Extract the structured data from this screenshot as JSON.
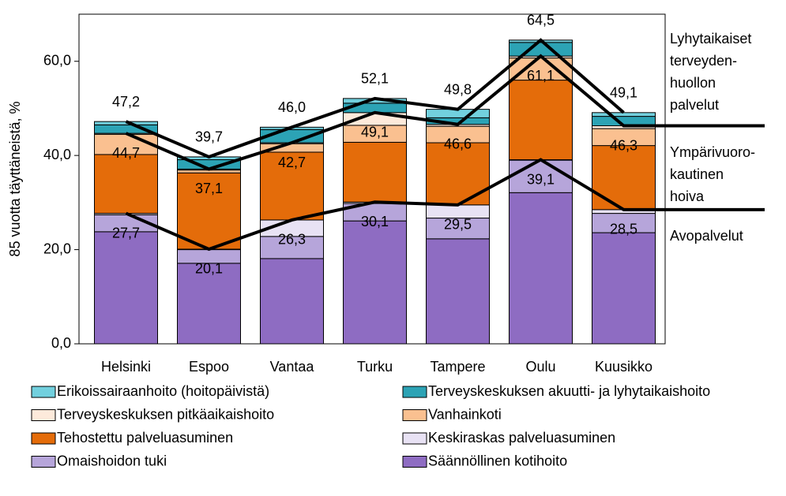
{
  "chart_data": {
    "type": "bar",
    "stacked": true,
    "y_label": "85 vuotta täyttäneistä, %",
    "categories": [
      "Helsinki",
      "Espoo",
      "Vantaa",
      "Turku",
      "Tampere",
      "Oulu",
      "Kuusikko"
    ],
    "ylim": [
      0,
      70
    ],
    "yticks": [
      {
        "value": 0,
        "label": "0,0"
      },
      {
        "value": 20,
        "label": "20,0"
      },
      {
        "value": 40,
        "label": "40,0"
      },
      {
        "value": 60,
        "label": "60,0"
      }
    ],
    "series": [
      {
        "name": "Säännöllinen kotihoito",
        "color": "#8e6cc2",
        "values": [
          23.8,
          17.1,
          18.1,
          26.1,
          22.3,
          32.1,
          23.6
        ]
      },
      {
        "name": "Omaishoidon tuki",
        "color": "#b6a5da",
        "values": [
          3.6,
          2.9,
          4.7,
          3.7,
          4.4,
          6.9,
          4.1
        ]
      },
      {
        "name": "Keskiraskas palveluasuminen",
        "color": "#e8e2f4",
        "values": [
          0.3,
          0.1,
          3.5,
          0.3,
          2.8,
          0.1,
          0.8
        ]
      },
      {
        "name": "Tehostettu palveluasuminen",
        "color": "#e46c0a",
        "values": [
          12.5,
          16.2,
          14.4,
          12.7,
          13.2,
          16.9,
          13.6
        ]
      },
      {
        "name": "Vanhainkoti",
        "color": "#fac090",
        "values": [
          4.3,
          0.6,
          1.8,
          3.6,
          3.5,
          4.7,
          3.6
        ]
      },
      {
        "name": "Terveyskeskuksen pitkäaikaishoito",
        "color": "#fdeadb",
        "values": [
          0.2,
          0.2,
          0.2,
          2.7,
          0.4,
          0.4,
          0.6
        ]
      },
      {
        "name": "Terveyskeskuksen akuutti- ja lyhytaikaishoito",
        "color": "#2ca3b5",
        "values": [
          1.8,
          2.0,
          2.8,
          2.0,
          1.4,
          2.9,
          2.0
        ]
      },
      {
        "name": "Erikoissairaanhoito (hoitopäivistä)",
        "color": "#72d0de",
        "values": [
          0.7,
          0.6,
          0.5,
          1.0,
          1.8,
          0.5,
          0.8
        ]
      }
    ],
    "lines": [
      {
        "label": [
          "Avopalvelut"
        ],
        "extend": true,
        "label_side": "below",
        "values": [
          27.7,
          20.1,
          26.3,
          30.1,
          29.5,
          39.1,
          28.5
        ],
        "value_labels": [
          "27,7",
          "20,1",
          "26,3",
          "30,1",
          "29,5",
          "39,1",
          "28,5"
        ]
      },
      {
        "label": [
          "Ympärivuoro-",
          "kautinen",
          "hoiva"
        ],
        "extend": true,
        "label_side": "below",
        "values": [
          44.7,
          37.1,
          42.7,
          49.1,
          46.6,
          61.1,
          46.3
        ],
        "value_labels": [
          "44,7",
          "37,1",
          "42,7",
          "49,1",
          "46,6",
          "61,1",
          "46,3"
        ]
      },
      {
        "label": [
          "Lyhytaikaiset",
          "terveyden-",
          "huollon",
          "palvelut"
        ],
        "extend": false,
        "label_side": "above",
        "values": [
          47.2,
          39.7,
          46.0,
          52.1,
          49.8,
          64.5,
          49.1
        ],
        "value_labels": [
          "47,2",
          "39,7",
          "46,0",
          "52,1",
          "49,8",
          "64,5",
          "49,1"
        ]
      }
    ]
  }
}
